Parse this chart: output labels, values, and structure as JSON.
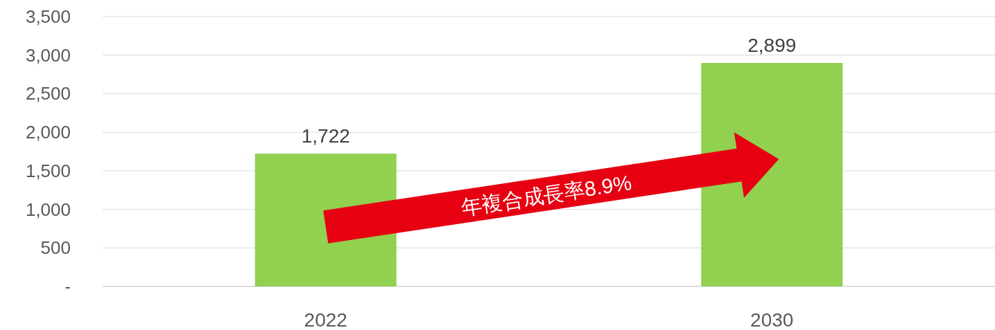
{
  "chart_data": {
    "type": "bar",
    "categories": [
      "2022",
      "2030"
    ],
    "values": [
      1722,
      2899
    ],
    "color": "#92d050",
    "value_labels": [
      "1,722",
      "2,899"
    ],
    "ylim": [
      0,
      3500
    ],
    "yticks": [
      {
        "value": 0,
        "label": "-"
      },
      {
        "value": 500,
        "label": "500"
      },
      {
        "value": 1000,
        "label": "1,000"
      },
      {
        "value": 1500,
        "label": "1,500"
      },
      {
        "value": 2000,
        "label": "2,000"
      },
      {
        "value": 2500,
        "label": "2,500"
      },
      {
        "value": 3000,
        "label": "3,000"
      },
      {
        "value": 3500,
        "label": "3,500"
      }
    ],
    "grid": "y",
    "annotations": [
      "年複合成長率8.9%"
    ]
  }
}
